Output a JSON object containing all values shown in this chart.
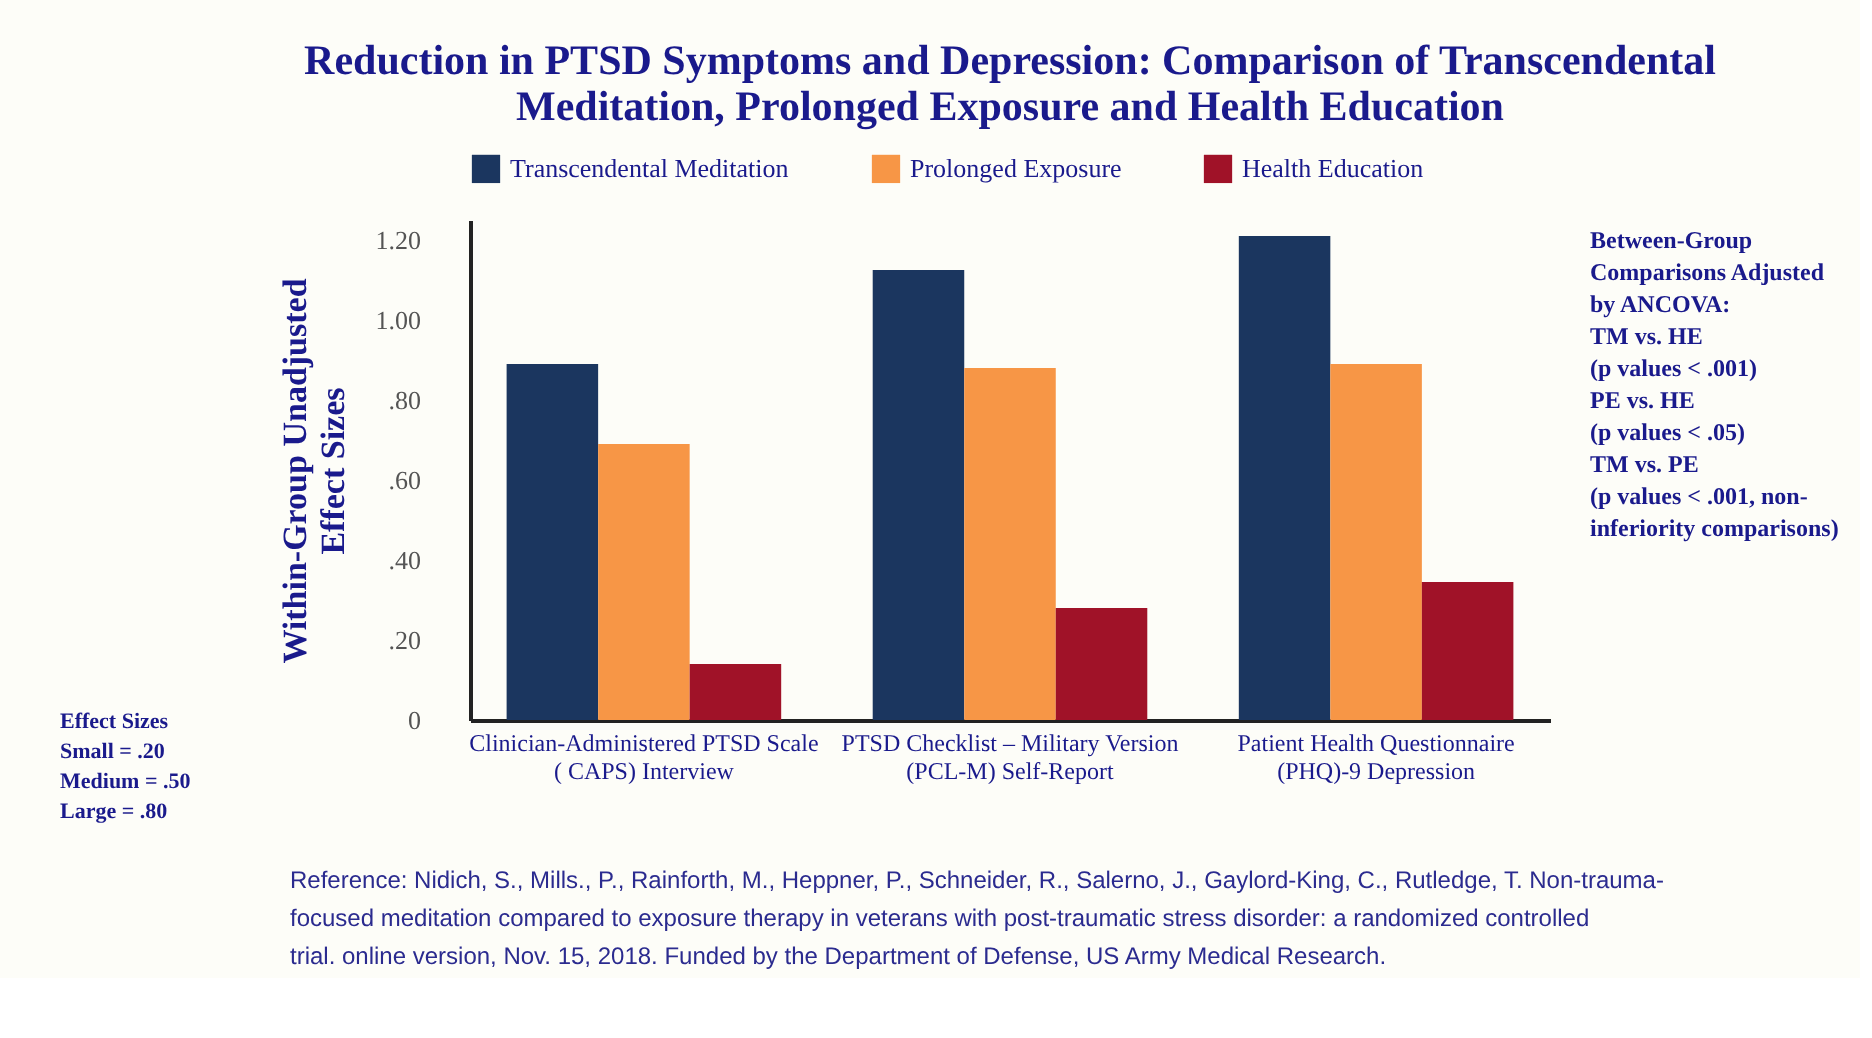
{
  "chart_data": {
    "type": "bar",
    "title": "Reduction in PTSD Symptoms and Depression: Comparison of Transcendental\nMeditation, Prolonged Exposure and Health Education",
    "ylabel": "Within-Group Unadjusted\nEffect Sizes",
    "categories": [
      "Clinician-Administered PTSD Scale\n( CAPS) Interview",
      "PTSD Checklist – Military Version\n(PCL-M) Self-Report",
      "Patient Health Questionnaire\n(PHQ)-9 Depression"
    ],
    "series": [
      {
        "name": "Transcendental Meditation",
        "color": "#1b365f",
        "values": [
          0.89,
          1.125,
          1.21
        ]
      },
      {
        "name": "Prolonged Exposure",
        "color": "#f79646",
        "values": [
          0.69,
          0.88,
          0.89
        ]
      },
      {
        "name": "Health Education",
        "color": "#a01228",
        "values": [
          0.14,
          0.28,
          0.345
        ]
      }
    ],
    "ylim": [
      0,
      1.25
    ],
    "yticks": [
      0,
      {
        "value": 0.2,
        "label": ".20"
      },
      {
        "value": 0.4,
        "label": ".40"
      },
      {
        "value": 0.6,
        "label": ".60"
      },
      {
        "value": 0.8,
        "label": ".80"
      },
      {
        "value": 1.0,
        "label": "1.00"
      },
      {
        "value": 1.2,
        "label": "1.20"
      }
    ],
    "grid": false,
    "legend": "top",
    "annotations": [
      "Between-Group\nComparisons Adjusted\nby ANCOVA:\n\nTM vs. HE\n(p values < .001)\n\nPE vs. HE\n(p values < .05)\n\nTM vs. PE\n(p values < .001, non-\ninferiority comparisons)",
      "Effect Sizes\nSmall = .20\nMedium = .50\nLarge = .80",
      "Reference: Nidich, S., Mills., P., Rainforth, M., Heppner, P., Schneider, R., Salerno, J., Gaylord-King, C., Rutledge, T.  Non-trauma-\nfocused meditation compared to exposure therapy in veterans with post-traumatic stress disorder: a randomized controlled\ntrial. online version, Nov. 15, 2018. Funded by the Department of Defense, US Army Medical Research."
    ]
  }
}
